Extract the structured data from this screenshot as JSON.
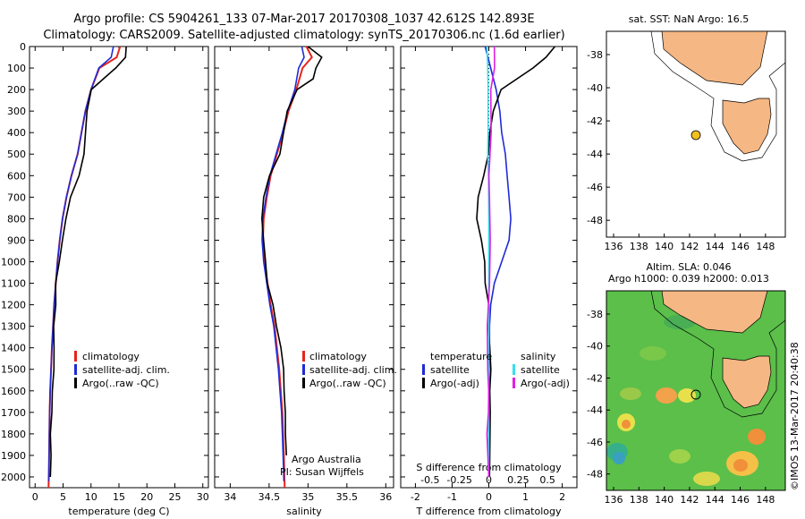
{
  "header": {
    "line1": "Argo profile: CS 5904261_133 07-Mar-2017 20170308_1037 42.612S 142.893E",
    "line2": "Climatology: CARS2009. Satellite-adjusted climatology: synTS_20170306.nc (1.6d earlier)"
  },
  "colors": {
    "climatology": "#e8231c",
    "satellite": "#1f2bd6",
    "argo": "#000000",
    "sat_s": "#33e0ee",
    "argo_s": "#e020e0",
    "land": "#f5b783",
    "ocean_bg": "#ffffff"
  },
  "y_ticks": [
    0,
    100,
    200,
    300,
    400,
    500,
    600,
    700,
    800,
    900,
    1000,
    1100,
    1200,
    1300,
    1400,
    1500,
    1600,
    1700,
    1800,
    1900,
    2000
  ],
  "legend1": {
    "climatology": "climatology",
    "satellite": "satellite-adj. clim.",
    "argo": "Argo(..raw -QC)"
  },
  "legend3": {
    "temp_title": "temperature",
    "sal_title": "salinity",
    "satellite": "satellite",
    "argo": "Argo(-adj)"
  },
  "credit": {
    "org": "Argo Australia",
    "pi": "PI: Susan Wijffels"
  },
  "sst_map": {
    "title": "sat. SST: NaN Argo: 16.5",
    "x_ticks": [
      "136",
      "138",
      "140",
      "142",
      "144",
      "146",
      "148"
    ],
    "y_ticks": [
      "-38",
      "-40",
      "-42",
      "-44",
      "-46",
      "-48"
    ]
  },
  "sla_map": {
    "title1": "Altim. SLA: 0.046",
    "title2": "Argo h1000: 0.039 h2000: 0.013",
    "x_ticks": [
      "136",
      "138",
      "140",
      "142",
      "144",
      "146",
      "148"
    ],
    "y_ticks": [
      "-38",
      "-40",
      "-42",
      "-44",
      "-46",
      "-48"
    ]
  },
  "watermark": "©IMOS 13-Mar-2017 20:40:38",
  "chart_data": [
    {
      "type": "line",
      "xlabel": "temperature (deg C)",
      "ylabel": "",
      "xlim": [
        -1,
        31
      ],
      "ylim": [
        2050,
        0
      ],
      "x_ticks": [
        0,
        5,
        10,
        15,
        20,
        25,
        30
      ],
      "series": [
        {
          "name": "climatology",
          "x": [
            15.2,
            14.6,
            11.5,
            10.0,
            9.0,
            8.3,
            7.6,
            6.5,
            5.6,
            4.9,
            4.4,
            4.0,
            3.7,
            3.4,
            3.2,
            3.0,
            2.85,
            2.7,
            2.6,
            2.55,
            2.5,
            2.4
          ],
          "y": [
            0,
            50,
            100,
            200,
            300,
            400,
            500,
            600,
            700,
            800,
            900,
            1000,
            1100,
            1200,
            1300,
            1400,
            1500,
            1600,
            1700,
            1800,
            1900,
            2050
          ]
        },
        {
          "name": "satellite-adj. clim.",
          "x": [
            14.0,
            13.6,
            11.4,
            10.0,
            9.0,
            8.3,
            7.6,
            6.5,
            5.6,
            4.9,
            4.4,
            4.0,
            3.7,
            3.4,
            3.2,
            3.0,
            2.85,
            2.7,
            2.6,
            2.55,
            2.5,
            2.45
          ],
          "y": [
            0,
            50,
            100,
            200,
            300,
            400,
            500,
            600,
            700,
            800,
            900,
            1000,
            1100,
            1200,
            1300,
            1400,
            1500,
            1600,
            1700,
            1800,
            1900,
            2020
          ]
        },
        {
          "name": "Argo(..raw -QC)",
          "x": [
            16.3,
            15.8,
            14.4,
            12.0,
            9.9,
            9.1,
            8.5,
            7.8,
            6.6,
            5.7,
            4.9,
            4.4,
            4.0,
            3.7,
            3.4,
            3.2,
            3.0,
            2.9,
            2.75,
            2.6,
            2.55,
            2.5
          ],
          "y": [
            0,
            50,
            100,
            150,
            200,
            300,
            500,
            600,
            700,
            800,
            900,
            1000,
            1100,
            1200,
            1300,
            1400,
            1500,
            1600,
            1700,
            1800,
            1900,
            2000
          ]
        }
      ]
    },
    {
      "type": "line",
      "xlabel": "salinity",
      "ylabel": "",
      "xlim": [
        33.8,
        36.1
      ],
      "ylim": [
        2050,
        0
      ],
      "x_ticks": [
        34,
        34.5,
        35,
        35.5,
        36
      ],
      "series": [
        {
          "name": "climatology",
          "x": [
            34.98,
            35.05,
            34.93,
            34.85,
            34.75,
            34.68,
            34.6,
            34.52,
            34.47,
            34.43,
            34.42,
            34.44,
            34.48,
            34.52,
            34.57,
            34.6,
            34.63,
            34.65,
            34.67,
            34.68,
            34.69,
            34.7
          ],
          "y": [
            0,
            50,
            100,
            200,
            300,
            400,
            500,
            600,
            700,
            800,
            900,
            1000,
            1100,
            1200,
            1300,
            1400,
            1500,
            1600,
            1700,
            1800,
            1900,
            2050
          ]
        },
        {
          "name": "satellite-adj. clim.",
          "x": [
            34.92,
            34.95,
            34.88,
            34.83,
            34.74,
            34.67,
            34.59,
            34.51,
            34.46,
            34.42,
            34.41,
            34.43,
            34.47,
            34.51,
            34.56,
            34.59,
            34.62,
            34.64,
            34.66,
            34.67,
            34.68,
            34.69
          ],
          "y": [
            0,
            50,
            100,
            200,
            300,
            400,
            500,
            600,
            700,
            800,
            900,
            1000,
            1100,
            1200,
            1300,
            1400,
            1500,
            1600,
            1700,
            1800,
            1900,
            2020
          ]
        },
        {
          "name": "Argo(..raw -QC)",
          "x": [
            35.0,
            35.15,
            35.1,
            35.05,
            34.85,
            34.72,
            34.62,
            34.5,
            34.45,
            34.42,
            34.43,
            34.46,
            34.5,
            34.55,
            34.6,
            34.64,
            34.66,
            34.68,
            34.69,
            34.7,
            34.7
          ],
          "y": [
            0,
            50,
            100,
            150,
            200,
            300,
            500,
            600,
            700,
            800,
            900,
            1000,
            1100,
            1200,
            1300,
            1400,
            1500,
            1600,
            1700,
            1800,
            1900
          ]
        }
      ]
    },
    {
      "type": "line",
      "xlabel": "T difference from climatology",
      "title": "S difference from climatology",
      "xlim": [
        -2.4,
        2.4
      ],
      "ylim": [
        2050,
        0
      ],
      "x_ticks": [
        -2,
        -1,
        0,
        1,
        2
      ],
      "top_ticks": [
        "-0.5",
        "-0.25",
        "0",
        "0.25",
        "0.5"
      ],
      "series": [
        {
          "name": "temperature satellite",
          "x": [
            -0.1,
            0.05,
            0.2,
            0.3,
            0.35,
            0.45,
            0.5,
            0.55,
            0.6,
            0.55,
            0.35,
            0.15,
            0.05,
            0.02,
            0.02,
            0.01,
            0.0,
            0.0,
            0.0,
            0.0,
            0.0
          ],
          "y": [
            0,
            100,
            200,
            300,
            400,
            500,
            600,
            700,
            800,
            900,
            1000,
            1100,
            1200,
            1300,
            1400,
            1500,
            1600,
            1700,
            1800,
            1900,
            2000
          ]
        },
        {
          "name": "temperature Argo(-adj)",
          "x": [
            1.8,
            1.5,
            1.2,
            0.3,
            0.1,
            0.0,
            -0.05,
            -0.15,
            -0.25,
            -0.3,
            -0.2,
            -0.1,
            -0.05,
            0.0,
            0.0,
            0.0,
            0.0,
            0.0,
            0.0,
            0.0
          ],
          "y": [
            0,
            50,
            100,
            200,
            300,
            400,
            500,
            600,
            700,
            800,
            900,
            1000,
            1100,
            1200,
            1300,
            1400,
            1500,
            1600,
            1700,
            2000
          ]
        },
        {
          "name": "salinity satellite",
          "x": [
            -0.05,
            -0.03,
            -0.02,
            -0.02,
            -0.02,
            -0.03,
            -0.01,
            0.0,
            0.0,
            0.0,
            0.0,
            0.0,
            0.0,
            0.0,
            0.0,
            0.0
          ],
          "y": [
            0,
            100,
            200,
            300,
            400,
            500,
            600,
            800,
            1000,
            1200,
            1400,
            1600,
            1700,
            1800,
            1900,
            2000
          ]
        },
        {
          "name": "salinity Argo(-adj)",
          "x": [
            0.15,
            0.1,
            0.05,
            0.03,
            -0.02,
            -0.01,
            0.0,
            0.01,
            0.0,
            0.0,
            0.0,
            0.0,
            0.0,
            0.0
          ],
          "y": [
            0,
            100,
            200,
            400,
            600,
            700,
            900,
            1100,
            1300,
            1500,
            1600,
            1700,
            1800,
            2000
          ]
        }
      ]
    }
  ]
}
